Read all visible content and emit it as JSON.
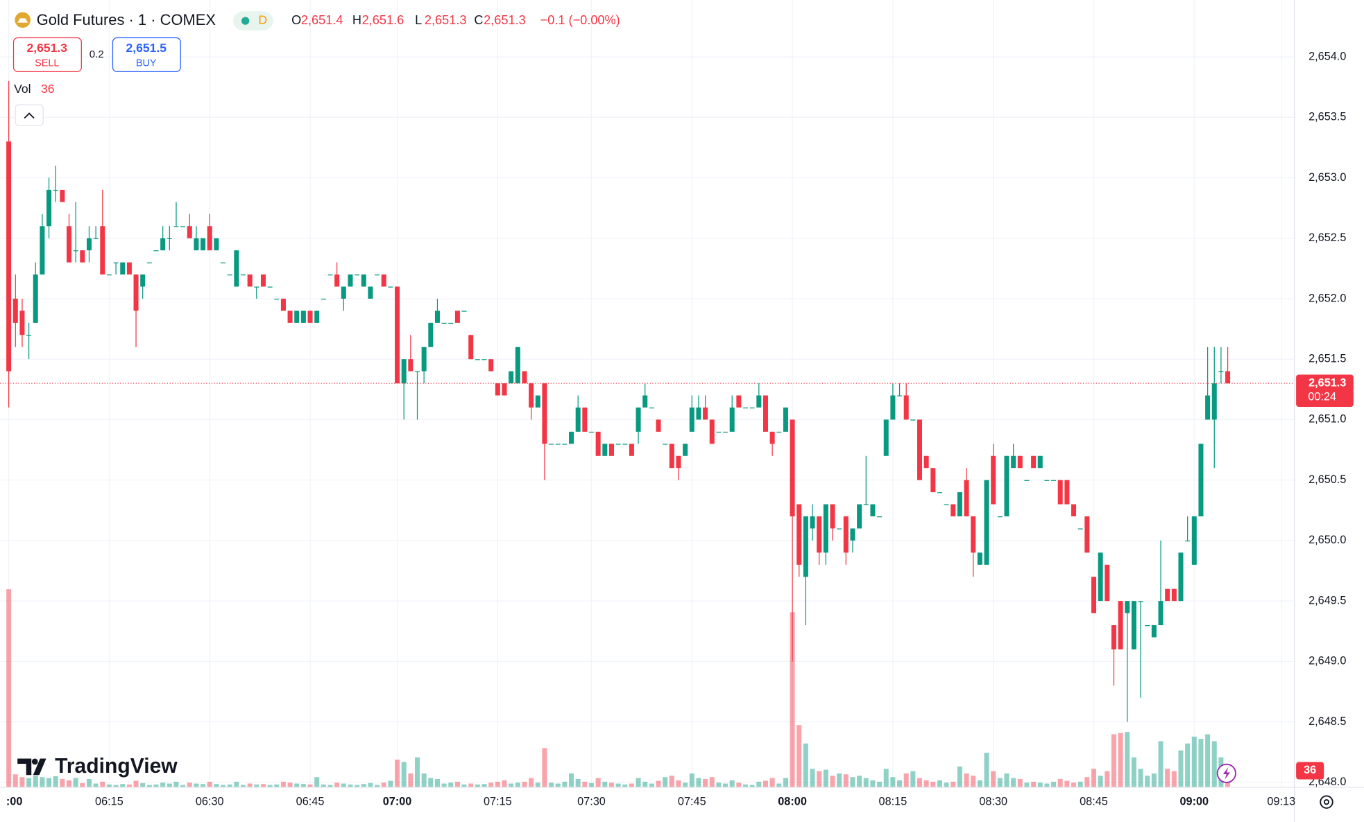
{
  "header": {
    "symbol": "Gold Futures · 1 · COMEX",
    "badge": "D",
    "ohlc": [
      {
        "key": "O",
        "value": "2,651.4"
      },
      {
        "key": "H",
        "value": "2,651.6"
      },
      {
        "key": "L",
        "value": "2,651.3"
      },
      {
        "key": "C",
        "value": "2,651.3"
      }
    ],
    "change": "−0.1 (−0.00%)"
  },
  "trade": {
    "sell_price": "2,651.3",
    "sell": "SELL",
    "spread": "0.2",
    "buy_price": "2,651.5",
    "buy": "BUY"
  },
  "volume_legend": "Vol",
  "logo": "TradingView",
  "price_label": {
    "price": "2,651.3",
    "countdown": "00:24"
  },
  "chart_data": {
    "type": "candlestick",
    "up_color": "#089981",
    "down_color": "#f23645",
    "grid": true,
    "ylim": [
      2647.96,
      2654.47
    ],
    "yticks": [
      {
        "value": 2648.0,
        "label": "2,648.0"
      },
      {
        "value": 2648.5,
        "label": "2,648.5"
      },
      {
        "value": 2649.0,
        "label": "2,649.0"
      },
      {
        "value": 2649.5,
        "label": "2,649.5"
      },
      {
        "value": 2650.0,
        "label": "2,650.0"
      },
      {
        "value": 2650.5,
        "label": "2,650.5"
      },
      {
        "value": 2651.0,
        "label": "2,651.0"
      },
      {
        "value": 2651.5,
        "label": "2,651.5"
      },
      {
        "value": 2652.0,
        "label": "2,652.0"
      },
      {
        "value": 2652.5,
        "label": "2,652.5"
      },
      {
        "value": 2653.0,
        "label": "2,653.0"
      },
      {
        "value": 2653.5,
        "label": "2,653.5"
      },
      {
        "value": 2654.0,
        "label": "2,654.0"
      }
    ],
    "xticks": [
      {
        "value": 0,
        "label": ":00"
      },
      {
        "value": 15,
        "label": "06:15"
      },
      {
        "value": 30,
        "label": "06:30"
      },
      {
        "value": 45,
        "label": "06:45"
      },
      {
        "value": 58,
        "label": "07:00"
      },
      {
        "value": 73,
        "label": "07:15"
      },
      {
        "value": 87,
        "label": "07:30"
      },
      {
        "value": 102,
        "label": "07:45"
      },
      {
        "value": 117,
        "label": "08:00"
      },
      {
        "value": 132,
        "label": "08:15"
      },
      {
        "value": 147,
        "label": "08:30"
      },
      {
        "value": 162,
        "label": "08:45"
      },
      {
        "value": 177,
        "label": "09:00"
      },
      {
        "value": 190,
        "label": "09:13"
      }
    ],
    "open": [
      2653.3,
      2652.0,
      2651.9,
      2651.7,
      2651.8,
      2652.2,
      2652.6,
      2652.9,
      2652.9,
      2652.6,
      2652.4,
      2652.4,
      2652.4,
      2652.5,
      2652.6,
      2652.2,
      2652.3,
      2652.2,
      2652.3,
      2652.2,
      2652.1,
      2652.3,
      2652.4,
      2652.4,
      2652.5,
      2652.6,
      2652.6,
      2652.6,
      2652.4,
      2652.4,
      2652.6,
      2652.4,
      2652.3,
      2652.2,
      2652.1,
      2652.2,
      2652.2,
      2652.1,
      2652.2,
      2652.1,
      2652.0,
      2652.0,
      2651.9,
      2651.8,
      2651.8,
      2651.9,
      2651.8,
      2652.0,
      2652.2,
      2652.2,
      2652.0,
      2652.1,
      2652.2,
      2652.1,
      2652.0,
      2652.2,
      2652.2,
      2652.1,
      2652.1,
      2651.3,
      2651.5,
      2651.4,
      2651.4,
      2651.6,
      2651.8,
      2651.8,
      2651.8,
      2651.9,
      2651.9,
      2651.7,
      2651.5,
      2651.5,
      2651.5,
      2651.3,
      2651.3,
      2651.3,
      2651.3,
      2651.4,
      2651.3,
      2651.1,
      2651.3,
      2650.8,
      2650.8,
      2650.8,
      2650.8,
      2650.9,
      2651.1,
      2650.9,
      2650.9,
      2650.7,
      2650.8,
      2650.8,
      2650.8,
      2650.8,
      2650.9,
      2651.1,
      2651.1,
      2651.0,
      2650.8,
      2650.8,
      2650.7,
      2650.7,
      2650.9,
      2651.0,
      2651.1,
      2651.0,
      2650.9,
      2650.9,
      2650.9,
      2651.2,
      2651.1,
      2651.1,
      2651.1,
      2651.2,
      2650.9,
      2650.9,
      2650.9,
      2651.0,
      2650.3,
      2649.7,
      2650.1,
      2650.2,
      2649.9,
      2650.3,
      2650.1,
      2650.2,
      2650.0,
      2650.1,
      2650.3,
      2650.2,
      2650.2,
      2650.7,
      2651.0,
      2651.2,
      2651.2,
      2651.0,
      2651.0,
      2650.7,
      2650.6,
      2650.4,
      2650.3,
      2650.3,
      2650.2,
      2650.5,
      2650.2,
      2649.8,
      2649.8,
      2650.7,
      2650.2,
      2650.2,
      2650.6,
      2650.7,
      2650.5,
      2650.7,
      2650.6,
      2650.5,
      2650.5,
      2650.5,
      2650.5,
      2650.3,
      2650.1,
      2650.2,
      2649.7,
      2649.5,
      2649.8,
      2649.3,
      2649.5,
      2649.4,
      2649.1,
      2649.5,
      2649.3,
      2649.2,
      2649.3,
      2649.6,
      2649.6,
      2649.5,
      2650.0,
      2649.8,
      2650.2,
      2651.0,
      2651.0,
      2651.4,
      2651.4
    ],
    "high": [
      2653.8,
      2652.2,
      2652.0,
      2651.8,
      2652.3,
      2652.7,
      2653.0,
      2653.1,
      2652.9,
      2652.7,
      2652.8,
      2652.4,
      2652.6,
      2652.6,
      2652.9,
      2652.2,
      2652.3,
      2652.3,
      2652.3,
      2652.2,
      2652.2,
      2652.3,
      2652.4,
      2652.6,
      2652.6,
      2652.8,
      2652.6,
      2652.7,
      2652.6,
      2652.5,
      2652.7,
      2652.5,
      2652.3,
      2652.2,
      2652.4,
      2652.2,
      2652.2,
      2652.1,
      2652.2,
      2652.1,
      2652.0,
      2652.0,
      2651.9,
      2651.9,
      2651.9,
      2651.9,
      2651.9,
      2652.0,
      2652.2,
      2652.3,
      2652.1,
      2652.2,
      2652.2,
      2652.2,
      2652.1,
      2652.2,
      2652.2,
      2652.1,
      2652.1,
      2651.5,
      2651.7,
      2651.4,
      2651.6,
      2651.8,
      2652.0,
      2651.8,
      2651.8,
      2651.9,
      2651.9,
      2651.7,
      2651.5,
      2651.5,
      2651.5,
      2651.3,
      2651.3,
      2651.4,
      2651.6,
      2651.4,
      2651.3,
      2651.2,
      2651.3,
      2650.8,
      2650.8,
      2650.8,
      2650.9,
      2651.2,
      2651.1,
      2650.9,
      2650.9,
      2650.8,
      2650.8,
      2650.8,
      2650.8,
      2650.8,
      2651.1,
      2651.3,
      2651.1,
      2651.0,
      2650.8,
      2650.8,
      2650.7,
      2650.8,
      2651.2,
      2651.2,
      2651.2,
      2651.0,
      2650.9,
      2650.9,
      2651.2,
      2651.2,
      2651.1,
      2651.1,
      2651.3,
      2651.2,
      2650.9,
      2650.9,
      2651.1,
      2651.0,
      2650.3,
      2650.2,
      2650.3,
      2650.2,
      2650.3,
      2650.3,
      2650.1,
      2650.2,
      2650.1,
      2650.3,
      2650.7,
      2650.3,
      2650.2,
      2651.0,
      2651.3,
      2651.3,
      2651.3,
      2651.0,
      2651.0,
      2650.7,
      2650.6,
      2650.4,
      2650.3,
      2650.3,
      2650.4,
      2650.6,
      2650.2,
      2649.9,
      2650.5,
      2650.8,
      2650.2,
      2650.7,
      2650.8,
      2650.7,
      2650.5,
      2650.7,
      2650.7,
      2650.5,
      2650.5,
      2650.5,
      2650.5,
      2650.3,
      2650.1,
      2650.2,
      2649.7,
      2649.9,
      2649.8,
      2649.3,
      2649.5,
      2649.5,
      2649.5,
      2649.5,
      2649.3,
      2649.3,
      2650.0,
      2649.6,
      2649.6,
      2649.9,
      2650.2,
      2650.2,
      2650.8,
      2651.6,
      2651.6,
      2651.6,
      2651.6
    ],
    "low": [
      2651.1,
      2651.6,
      2651.6,
      2651.5,
      2651.8,
      2652.2,
      2652.5,
      2652.8,
      2652.8,
      2652.3,
      2652.3,
      2652.3,
      2652.3,
      2652.5,
      2652.2,
      2652.2,
      2652.2,
      2652.2,
      2652.2,
      2651.6,
      2652.0,
      2652.3,
      2652.4,
      2652.4,
      2652.4,
      2652.6,
      2652.6,
      2652.5,
      2652.4,
      2652.4,
      2652.4,
      2652.4,
      2652.3,
      2652.2,
      2652.1,
      2652.2,
      2652.1,
      2652.0,
      2652.1,
      2652.1,
      2652.0,
      2651.9,
      2651.8,
      2651.8,
      2651.8,
      2651.8,
      2651.8,
      2652.0,
      2652.2,
      2652.1,
      2651.9,
      2652.1,
      2652.2,
      2652.1,
      2652.0,
      2652.2,
      2652.1,
      2652.1,
      2651.3,
      2651.0,
      2651.4,
      2651.0,
      2651.3,
      2651.6,
      2651.8,
      2651.8,
      2651.8,
      2651.8,
      2651.9,
      2651.5,
      2651.5,
      2651.5,
      2651.4,
      2651.2,
      2651.2,
      2651.3,
      2651.3,
      2651.3,
      2651.0,
      2651.1,
      2650.5,
      2650.8,
      2650.8,
      2650.8,
      2650.8,
      2650.9,
      2650.9,
      2650.9,
      2650.7,
      2650.7,
      2650.7,
      2650.8,
      2650.8,
      2650.7,
      2650.8,
      2651.1,
      2651.1,
      2650.9,
      2650.8,
      2650.6,
      2650.5,
      2650.7,
      2650.9,
      2651.0,
      2651.0,
      2650.8,
      2650.9,
      2650.9,
      2650.9,
      2651.1,
      2651.1,
      2651.1,
      2651.1,
      2650.9,
      2650.7,
      2650.9,
      2650.9,
      2649.0,
      2649.7,
      2649.3,
      2650.0,
      2649.8,
      2649.8,
      2650.0,
      2650.1,
      2649.8,
      2649.9,
      2650.1,
      2650.3,
      2650.2,
      2650.2,
      2650.7,
      2651.0,
      2651.2,
      2651.0,
      2651.0,
      2650.5,
      2650.6,
      2650.4,
      2650.4,
      2650.3,
      2650.2,
      2650.2,
      2650.2,
      2649.7,
      2649.8,
      2649.8,
      2650.3,
      2650.2,
      2650.2,
      2650.6,
      2650.6,
      2650.5,
      2650.6,
      2650.6,
      2650.5,
      2650.5,
      2650.3,
      2650.3,
      2650.2,
      2650.1,
      2649.9,
      2649.4,
      2649.5,
      2649.5,
      2648.8,
      2649.1,
      2648.5,
      2649.1,
      2648.7,
      2649.3,
      2649.2,
      2649.3,
      2649.5,
      2649.5,
      2649.5,
      2650.0,
      2649.8,
      2650.2,
      2651.0,
      2650.6,
      2651.3,
      2651.3
    ],
    "close": [
      2651.4,
      2651.8,
      2651.7,
      2651.7,
      2652.2,
      2652.6,
      2652.9,
      2652.9,
      2652.8,
      2652.3,
      2652.4,
      2652.3,
      2652.5,
      2652.5,
      2652.2,
      2652.2,
      2652.3,
      2652.3,
      2652.2,
      2651.9,
      2652.2,
      2652.3,
      2652.4,
      2652.5,
      2652.5,
      2652.6,
      2652.6,
      2652.5,
      2652.5,
      2652.5,
      2652.4,
      2652.5,
      2652.3,
      2652.2,
      2652.4,
      2652.2,
      2652.1,
      2652.1,
      2652.1,
      2652.1,
      2652.0,
      2651.9,
      2651.8,
      2651.9,
      2651.9,
      2651.8,
      2651.9,
      2652.0,
      2652.2,
      2652.1,
      2652.1,
      2652.2,
      2652.2,
      2652.2,
      2652.1,
      2652.2,
      2652.1,
      2652.1,
      2651.3,
      2651.5,
      2651.4,
      2651.4,
      2651.6,
      2651.8,
      2651.9,
      2651.8,
      2651.8,
      2651.8,
      2651.9,
      2651.5,
      2651.5,
      2651.5,
      2651.4,
      2651.2,
      2651.2,
      2651.4,
      2651.6,
      2651.3,
      2651.1,
      2651.2,
      2650.8,
      2650.8,
      2650.8,
      2650.8,
      2650.9,
      2651.1,
      2650.9,
      2650.9,
      2650.7,
      2650.8,
      2650.7,
      2650.8,
      2650.8,
      2650.7,
      2651.1,
      2651.2,
      2651.1,
      2650.9,
      2650.8,
      2650.6,
      2650.6,
      2650.8,
      2651.1,
      2651.1,
      2651.0,
      2650.8,
      2650.9,
      2650.9,
      2651.1,
      2651.1,
      2651.1,
      2651.1,
      2651.2,
      2650.9,
      2650.8,
      2650.9,
      2651.1,
      2650.2,
      2649.8,
      2650.2,
      2650.2,
      2649.9,
      2650.3,
      2650.1,
      2650.1,
      2649.9,
      2650.1,
      2650.3,
      2650.3,
      2650.3,
      2650.2,
      2651.0,
      2651.2,
      2651.2,
      2651.0,
      2651.0,
      2650.5,
      2650.6,
      2650.4,
      2650.4,
      2650.3,
      2650.2,
      2650.4,
      2650.2,
      2649.9,
      2649.9,
      2650.5,
      2650.3,
      2650.2,
      2650.7,
      2650.7,
      2650.6,
      2650.5,
      2650.6,
      2650.7,
      2650.5,
      2650.5,
      2650.3,
      2650.3,
      2650.2,
      2650.1,
      2649.9,
      2649.4,
      2649.9,
      2649.5,
      2649.1,
      2649.1,
      2649.5,
      2649.5,
      2649.5,
      2649.3,
      2649.3,
      2649.5,
      2649.5,
      2649.5,
      2649.9,
      2650.0,
      2650.2,
      2650.8,
      2651.2,
      2651.3,
      2651.4,
      2651.3
    ],
    "volume": [
      430,
      28,
      22,
      20,
      25,
      22,
      20,
      24,
      18,
      15,
      20,
      9,
      18,
      8,
      12,
      6,
      5,
      7,
      6,
      14,
      9,
      5,
      6,
      10,
      8,
      12,
      5,
      10,
      8,
      7,
      12,
      7,
      5,
      6,
      12,
      5,
      8,
      6,
      7,
      5,
      6,
      12,
      10,
      8,
      7,
      6,
      22,
      6,
      5,
      10,
      8,
      6,
      5,
      7,
      9,
      5,
      10,
      14,
      60,
      55,
      30,
      65,
      30,
      20,
      18,
      8,
      10,
      12,
      6,
      8,
      6,
      7,
      10,
      12,
      15,
      8,
      10,
      12,
      20,
      10,
      85,
      10,
      8,
      12,
      30,
      18,
      12,
      9,
      20,
      12,
      10,
      8,
      6,
      8,
      20,
      12,
      8,
      14,
      22,
      25,
      15,
      10,
      30,
      20,
      18,
      22,
      10,
      8,
      15,
      10,
      6,
      5,
      12,
      14,
      20,
      8,
      20,
      380,
      135,
      95,
      40,
      35,
      38,
      25,
      30,
      28,
      22,
      25,
      20,
      15,
      12,
      40,
      22,
      15,
      30,
      35,
      20,
      15,
      12,
      15,
      10,
      12,
      45,
      30,
      25,
      15,
      75,
      35,
      20,
      30,
      20,
      18,
      10,
      12,
      10,
      8,
      12,
      18,
      14,
      10,
      12,
      22,
      40,
      25,
      35,
      115,
      118,
      120,
      65,
      40,
      25,
      30,
      100,
      40,
      35,
      80,
      95,
      110,
      105,
      115,
      100,
      65,
      36
    ]
  }
}
